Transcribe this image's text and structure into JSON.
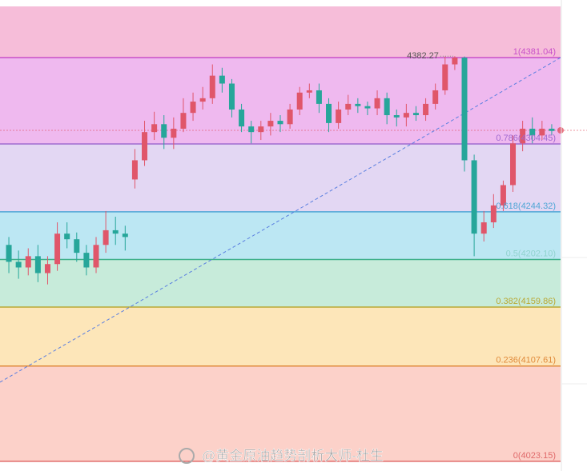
{
  "chart_data": {
    "type": "candlestick",
    "ylim": [
      4014.6,
      4426.4
    ],
    "up_color": "#e0566a",
    "down_color": "#26a69a",
    "open": [
      4215,
      4200,
      4195,
      4205,
      4190,
      4198,
      4225,
      4220,
      4208,
      4195,
      4215,
      4228,
      4225,
      4273,
      4290,
      4315,
      4322,
      4310,
      4318,
      4332,
      4342,
      4345,
      4365,
      4358,
      4335,
      4320,
      4315,
      4320,
      4325,
      4322,
      4335,
      4350,
      4352,
      4340,
      4323,
      4335,
      4340,
      4338,
      4336,
      4345,
      4330,
      4328,
      4332,
      4330,
      4340,
      4352,
      4375,
      4381,
      4290,
      4225,
      4235,
      4250,
      4268,
      4305,
      4318,
      4312,
      4318
    ],
    "high": [
      4222,
      4210,
      4212,
      4215,
      4205,
      4235,
      4235,
      4226,
      4215,
      4222,
      4245,
      4240,
      4232,
      4300,
      4325,
      4333,
      4330,
      4328,
      4345,
      4350,
      4355,
      4375,
      4372,
      4362,
      4340,
      4325,
      4325,
      4332,
      4330,
      4340,
      4355,
      4358,
      4358,
      4345,
      4342,
      4348,
      4345,
      4342,
      4352,
      4350,
      4335,
      4340,
      4338,
      4345,
      4358,
      4382,
      4382.27,
      4382,
      4295,
      4245,
      4260,
      4272,
      4312,
      4325,
      4328,
      4325,
      4322
    ],
    "low": [
      4190,
      4185,
      4188,
      4182,
      4180,
      4192,
      4212,
      4200,
      4188,
      4190,
      4208,
      4215,
      4210,
      4265,
      4285,
      4308,
      4300,
      4300,
      4315,
      4325,
      4335,
      4340,
      4350,
      4328,
      4315,
      4305,
      4308,
      4312,
      4315,
      4318,
      4330,
      4345,
      4332,
      4315,
      4318,
      4330,
      4332,
      4330,
      4330,
      4322,
      4320,
      4320,
      4325,
      4325,
      4335,
      4348,
      4370,
      4280,
      4205,
      4218,
      4230,
      4245,
      4262,
      4298,
      4305,
      4308,
      4312
    ],
    "close": [
      4200,
      4195,
      4205,
      4190,
      4198,
      4225,
      4220,
      4208,
      4195,
      4215,
      4228,
      4225,
      4222,
      4290,
      4315,
      4322,
      4310,
      4318,
      4332,
      4342,
      4345,
      4365,
      4358,
      4335,
      4320,
      4315,
      4320,
      4325,
      4322,
      4335,
      4350,
      4352,
      4340,
      4323,
      4335,
      4340,
      4338,
      4336,
      4345,
      4330,
      4328,
      4332,
      4330,
      4340,
      4352,
      4375,
      4381,
      4290,
      4225,
      4235,
      4250,
      4268,
      4305,
      4318,
      4312,
      4318,
      4316
    ],
    "high_label": {
      "value": 4382.27,
      "label": "4382.27"
    },
    "fib_levels": [
      {
        "price": 4381.04,
        "label": "1(4381.04)",
        "color": "#c94fc9"
      },
      {
        "price": 4304.45,
        "label": "0.786(4304.45)",
        "color": "#a06ad0"
      },
      {
        "price": 4244.32,
        "label": "0.618(4244.32)",
        "color": "#4fa6d6"
      },
      {
        "price": 4202.1,
        "label": "0.5(4202.10)",
        "color": "#3fb08a"
      },
      {
        "price": 4159.86,
        "label": "0.382(4159.86)",
        "color": "#b9a834"
      },
      {
        "price": 4107.61,
        "label": "0.236(4107.61)",
        "color": "#e08a3a"
      },
      {
        "price": 4023.15,
        "label": "0(4023.15)",
        "color": "#e06a6a"
      }
    ],
    "band_colors": [
      "#f6bdd9",
      "#efb9ef",
      "#e3d7f3",
      "#bce7f3",
      "#c7ebda",
      "#fde6b9",
      "#fcd1c9"
    ]
  },
  "watermark": "@黄金原油趋势剖析大师-杜生"
}
